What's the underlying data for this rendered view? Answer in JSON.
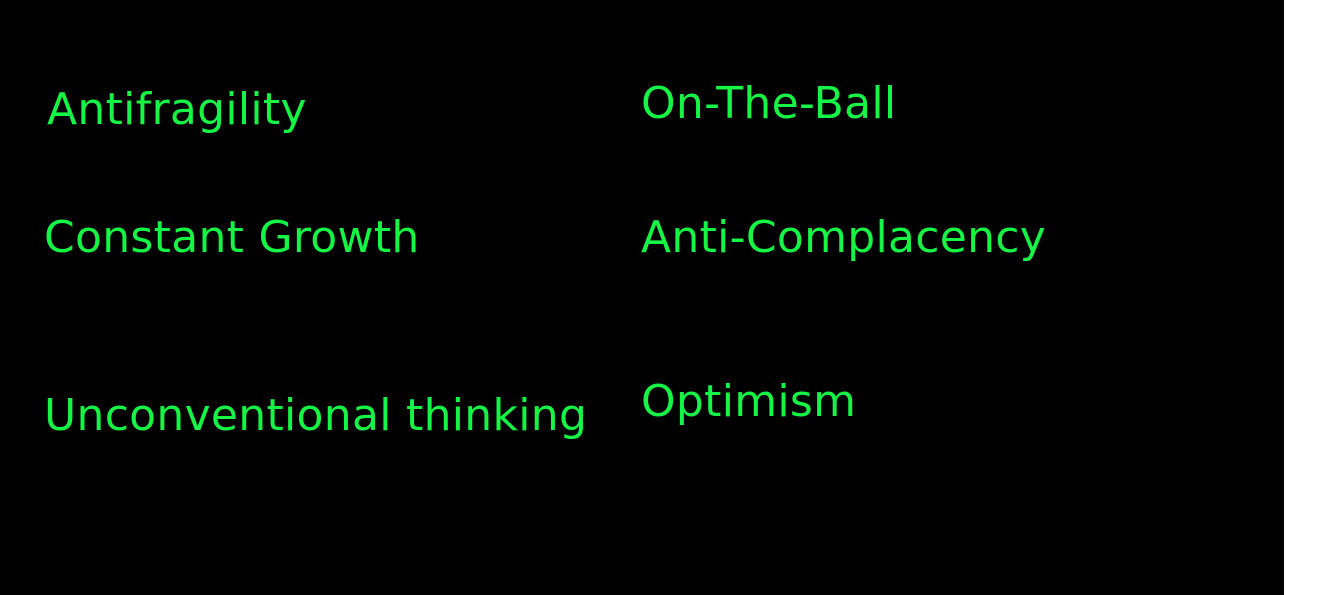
{
  "colors": {
    "background": "#000000",
    "text": "#14f545",
    "page": "#ffffff"
  },
  "values": [
    "Antifragility",
    "On-The-Ball",
    "Constant Growth",
    "Anti-Complacency",
    "Unconventional thinking",
    "Optimism"
  ]
}
